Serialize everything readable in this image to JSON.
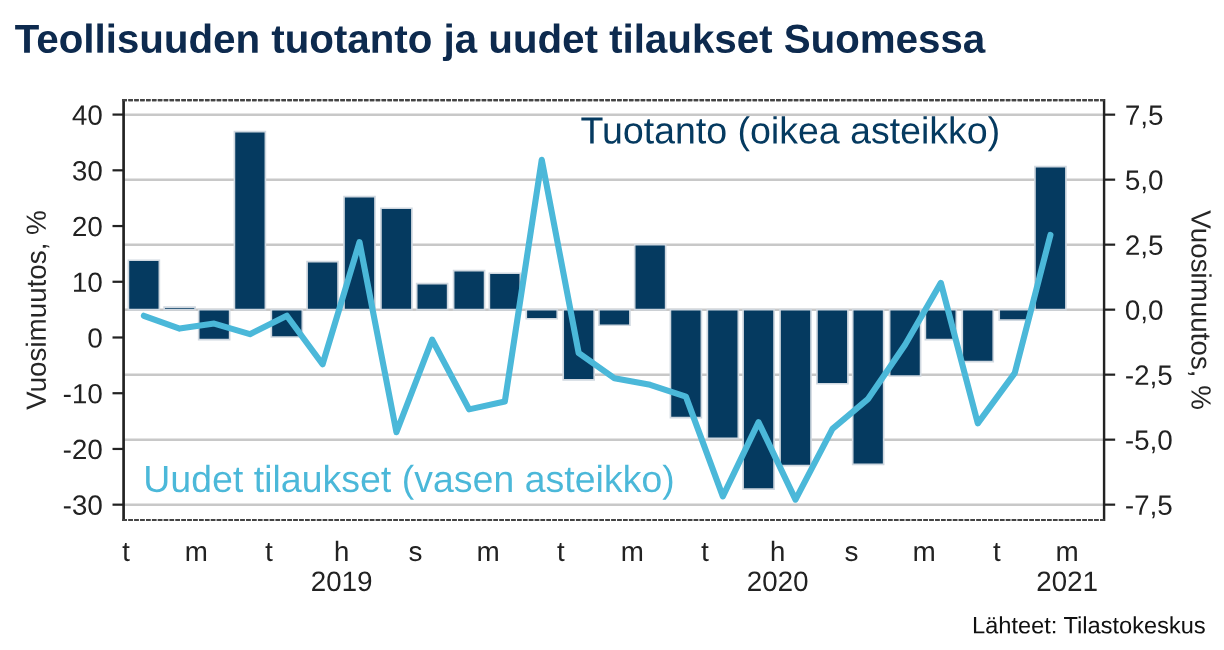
{
  "chart_data": {
    "type": "bar",
    "title": "Teollisuuden tuotanto ja uudet tilaukset Suomessa",
    "ylabel": "Vuosimuutos, %",
    "y2label": "Vuosimuutos, %",
    "x": [
      "2019-01-16",
      "2019-02-15",
      "2019-03-16",
      "2019-04-15",
      "2019-05-16",
      "2019-06-15",
      "2019-07-16",
      "2019-08-16",
      "2019-09-15",
      "2019-10-16",
      "2019-11-15",
      "2019-12-16",
      "2020-01-16",
      "2020-02-15",
      "2020-03-16",
      "2020-04-15",
      "2020-05-16",
      "2020-06-15",
      "2020-07-16",
      "2020-08-16",
      "2020-09-15",
      "2020-10-16",
      "2020-11-15",
      "2020-12-16",
      "2021-01-16",
      "2021-02-15"
    ],
    "series": [
      {
        "name": "Tuotanto (oikea asteikko)",
        "axis": "y2",
        "color": "#053a60",
        "values": [
          1.9,
          0.1,
          -1.15,
          6.85,
          -1.05,
          1.85,
          4.35,
          3.9,
          1.0,
          1.5,
          1.4,
          -0.35,
          -2.7,
          -0.6,
          2.5,
          -4.15,
          -4.95,
          -6.9,
          -6.0,
          -2.85,
          -5.95,
          -2.55,
          -1.15,
          -2.0,
          -0.4,
          5.5
        ]
      },
      {
        "name": "Uudet tilaukset (vasen asteikko)",
        "type": "line",
        "color": "#4bb8d9",
        "values": [
          3.9,
          1.6,
          2.5,
          0.6,
          3.9,
          -4.8,
          17.1,
          -17.0,
          -0.4,
          -12.9,
          -11.5,
          31.9,
          -2.8,
          -7.3,
          -8.5,
          -10.6,
          -28.5,
          -15.2,
          -29.1,
          -16.4,
          -11.0,
          -1.3,
          9.8,
          -15.4,
          -6.4,
          18.4
        ]
      }
    ],
    "xlim": [
      "2018-12-30",
      "2021-04-01"
    ],
    "xticks": [
      {
        "value": "2019-01-01",
        "label": "t"
      },
      {
        "value": "2019-03-01",
        "label": "m"
      },
      {
        "value": "2019-05-01",
        "label": "t"
      },
      {
        "value": "2019-07-01",
        "label": "h\n2019"
      },
      {
        "value": "2019-09-01",
        "label": "s"
      },
      {
        "value": "2019-11-01",
        "label": "m"
      },
      {
        "value": "2020-01-01",
        "label": "t"
      },
      {
        "value": "2020-03-01",
        "label": "m"
      },
      {
        "value": "2020-05-01",
        "label": "t"
      },
      {
        "value": "2020-07-01",
        "label": "h\n2020"
      },
      {
        "value": "2020-09-01",
        "label": "s"
      },
      {
        "value": "2020-11-01",
        "label": "m"
      },
      {
        "value": "2021-01-01",
        "label": "t"
      },
      {
        "value": "2021-03-01",
        "label": "m\n2021"
      }
    ],
    "ylim": [
      -32.75,
      42.6
    ],
    "yticks": [
      -30,
      -20,
      -10,
      0,
      10,
      20,
      30,
      40
    ],
    "y2lim": [
      -8.09,
      8.06
    ],
    "y2ticks": [
      {
        "value": -7.5,
        "label": "-7,5"
      },
      {
        "value": -5,
        "label": "-5,0"
      },
      {
        "value": -2.5,
        "label": "-2,5"
      },
      {
        "value": 0,
        "label": "0,0"
      },
      {
        "value": 2.5,
        "label": "2,5"
      },
      {
        "value": 5,
        "label": "5,0"
      },
      {
        "value": 7.5,
        "label": "7,5"
      }
    ],
    "grid": "y",
    "annotations": [
      "Lähteet: Tilastokeskus"
    ]
  }
}
